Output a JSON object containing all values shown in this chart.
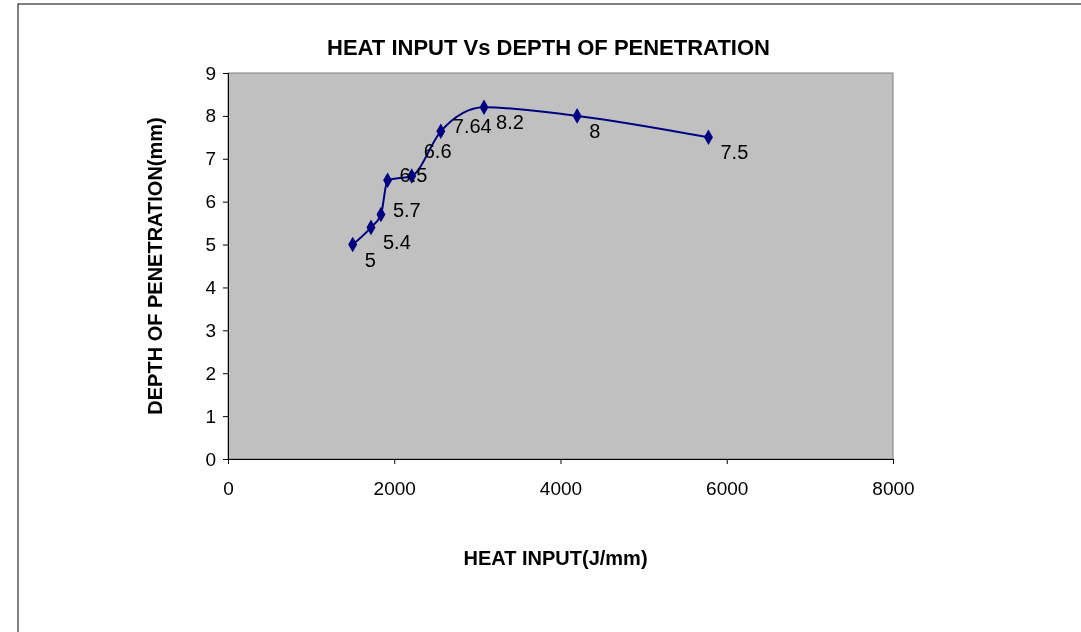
{
  "chart_data": {
    "type": "line",
    "title": "HEAT INPUT Vs DEPTH OF PENETRATION",
    "xlabel": "HEAT INPUT(J/mm)",
    "ylabel": "DEPTH OF PENETRATION(mm)",
    "x": [
      1500,
      1720,
      1840,
      1920,
      2210,
      2560,
      3080,
      4200,
      5780
    ],
    "series": [
      {
        "color": "#000080",
        "values": [
          5,
          5.4,
          5.7,
          6.5,
          6.6,
          7.64,
          8.2,
          8,
          7.5
        ]
      }
    ],
    "xlim": [
      0,
      8000
    ],
    "xticks": [
      0,
      2000,
      4000,
      6000,
      8000
    ],
    "ylim": [
      0,
      9
    ],
    "yticks": [
      0,
      1,
      2,
      3,
      4,
      5,
      6,
      7,
      8,
      9
    ],
    "marker": "diamond",
    "line_style": "solid",
    "data_labels": true,
    "grid": false
  }
}
